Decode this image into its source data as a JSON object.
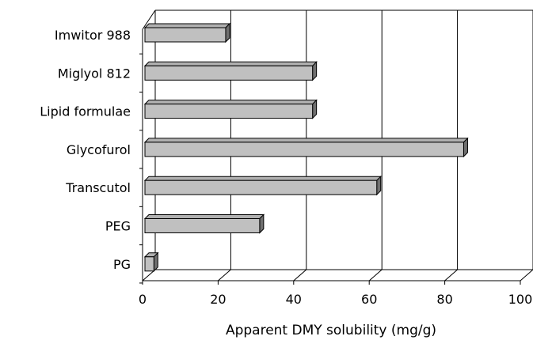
{
  "chart_data": {
    "type": "bar",
    "orientation": "horizontal",
    "style": "3d",
    "categories": [
      "Imwitor 988",
      "Miglyol 812",
      "Lipid formulae",
      "Glycofurol",
      "Transcutol",
      "PEG",
      "PG"
    ],
    "values": [
      22,
      45,
      45,
      85,
      62,
      31,
      3
    ],
    "title": "",
    "xlabel": "Apparent DMY solubility (mg/g)",
    "ylabel": "",
    "xlim": [
      0,
      100
    ],
    "xticks": [
      0,
      20,
      40,
      60,
      80,
      100
    ],
    "grid": "vertical",
    "legend": "none",
    "colors": {
      "bar_front": "#c0c0c0",
      "bar_top": "#b0b0b0",
      "bar_side": "#6f6f6f",
      "outline": "#000000",
      "gridline": "#000000",
      "background": "#ffffff"
    }
  }
}
